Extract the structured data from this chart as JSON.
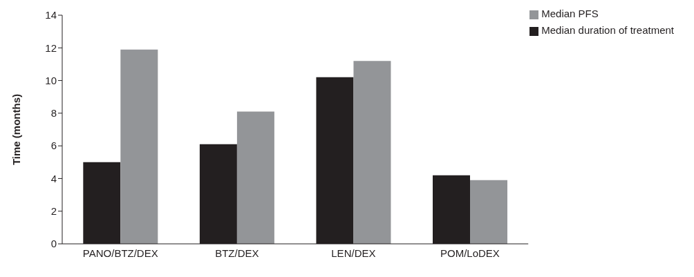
{
  "chart_data": {
    "type": "bar",
    "ylabel": "Time (months)",
    "categories": [
      "PANO/BTZ/DEX",
      "BTZ/DEX",
      "LEN/DEX",
      "POM/LoDEX"
    ],
    "series": [
      {
        "name": "Median duration of treatment",
        "color": "#231f20",
        "values": [
          5.0,
          6.1,
          10.2,
          4.2
        ]
      },
      {
        "name": "Median PFS",
        "color": "#939598",
        "values": [
          11.9,
          8.1,
          11.2,
          3.9
        ]
      }
    ],
    "ylim": [
      0,
      14
    ],
    "yticks": [
      0,
      2,
      4,
      6,
      8,
      10,
      12,
      14
    ],
    "grid": false,
    "legend": "top right"
  }
}
